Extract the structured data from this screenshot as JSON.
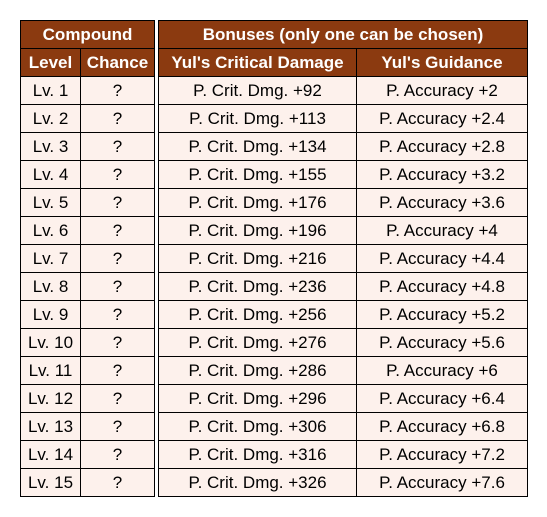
{
  "compound": {
    "group_header": "Compound",
    "col_level": "Level",
    "col_chance": "Chance"
  },
  "bonuses": {
    "group_header": "Bonuses (only one can be chosen)",
    "col_crit": "Yul's Critical Damage",
    "col_guidance": "Yul's Guidance"
  },
  "rows": [
    {
      "level": "Lv. 1",
      "chance": "?",
      "crit": "P. Crit. Dmg. +92",
      "guidance": "P. Accuracy +2"
    },
    {
      "level": "Lv. 2",
      "chance": "?",
      "crit": "P. Crit. Dmg. +113",
      "guidance": "P. Accuracy +2.4"
    },
    {
      "level": "Lv. 3",
      "chance": "?",
      "crit": "P. Crit. Dmg. +134",
      "guidance": "P. Accuracy +2.8"
    },
    {
      "level": "Lv. 4",
      "chance": "?",
      "crit": "P. Crit. Dmg. +155",
      "guidance": "P. Accuracy +3.2"
    },
    {
      "level": "Lv. 5",
      "chance": "?",
      "crit": "P. Crit. Dmg. +176",
      "guidance": "P. Accuracy +3.6"
    },
    {
      "level": "Lv. 6",
      "chance": "?",
      "crit": "P. Crit. Dmg. +196",
      "guidance": "P. Accuracy +4"
    },
    {
      "level": "Lv. 7",
      "chance": "?",
      "crit": "P. Crit. Dmg. +216",
      "guidance": "P. Accuracy +4.4"
    },
    {
      "level": "Lv. 8",
      "chance": "?",
      "crit": "P. Crit. Dmg. +236",
      "guidance": "P. Accuracy +4.8"
    },
    {
      "level": "Lv. 9",
      "chance": "?",
      "crit": "P. Crit. Dmg. +256",
      "guidance": "P. Accuracy +5.2"
    },
    {
      "level": "Lv. 10",
      "chance": "?",
      "crit": "P. Crit. Dmg. +276",
      "guidance": "P. Accuracy +5.6"
    },
    {
      "level": "Lv. 11",
      "chance": "?",
      "crit": "P. Crit. Dmg. +286",
      "guidance": "P. Accuracy +6"
    },
    {
      "level": "Lv. 12",
      "chance": "?",
      "crit": "P. Crit. Dmg. +296",
      "guidance": "P. Accuracy +6.4"
    },
    {
      "level": "Lv. 13",
      "chance": "?",
      "crit": "P. Crit. Dmg. +306",
      "guidance": "P. Accuracy +6.8"
    },
    {
      "level": "Lv. 14",
      "chance": "?",
      "crit": "P. Crit. Dmg. +316",
      "guidance": "P. Accuracy +7.2"
    },
    {
      "level": "Lv. 15",
      "chance": "?",
      "crit": "P. Crit. Dmg. +326",
      "guidance": "P. Accuracy +7.6"
    }
  ],
  "colors": {
    "header_bg": "#8b3a10",
    "header_text": "#ffffff",
    "cell_bg": "#fdf1ec"
  }
}
